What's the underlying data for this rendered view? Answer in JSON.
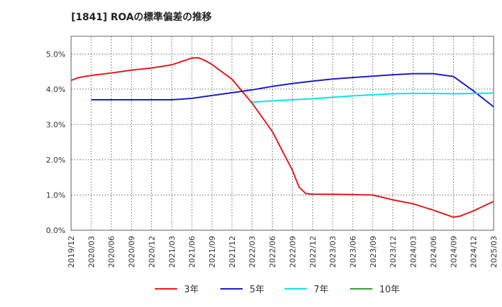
{
  "chart_data": {
    "type": "line",
    "title": "[1841]  ROAの標準偏差の推移",
    "xlabel": "",
    "ylabel": "",
    "ylim": [
      0,
      5.5
    ],
    "grid": true,
    "legend_position": "bottom",
    "x_tick_labels": [
      "2019/12",
      "2020/03",
      "2020/06",
      "2020/09",
      "2020/12",
      "2021/03",
      "2021/06",
      "2021/09",
      "2021/12",
      "2022/03",
      "2022/06",
      "2022/09",
      "2022/12",
      "2023/03",
      "2023/06",
      "2023/09",
      "2023/12",
      "2024/03",
      "2024/06",
      "2024/09",
      "2024/12",
      "2025/03"
    ],
    "y_ticks": [
      0,
      1,
      2,
      3,
      4,
      5
    ],
    "y_tick_labels": [
      "0.0%",
      "1.0%",
      "2.0%",
      "3.0%",
      "4.0%",
      "5.0%"
    ],
    "series": [
      {
        "name": "3年",
        "color": "#e31a1c",
        "points": [
          [
            "2019/12",
            4.25
          ],
          [
            "2020/01",
            4.32
          ],
          [
            "2020/02",
            4.36
          ],
          [
            "2020/03",
            4.39
          ],
          [
            "2020/06",
            4.46
          ],
          [
            "2020/09",
            4.54
          ],
          [
            "2020/12",
            4.6
          ],
          [
            "2021/03",
            4.69
          ],
          [
            "2021/06",
            4.88
          ],
          [
            "2021/07",
            4.89
          ],
          [
            "2021/08",
            4.81
          ],
          [
            "2021/09",
            4.7
          ],
          [
            "2021/12",
            4.28
          ],
          [
            "2022/03",
            3.6
          ],
          [
            "2022/06",
            2.8
          ],
          [
            "2022/09",
            1.7
          ],
          [
            "2022/10",
            1.22
          ],
          [
            "2022/11",
            1.04
          ],
          [
            "2022/12",
            1.02
          ],
          [
            "2023/03",
            1.02
          ],
          [
            "2023/06",
            1.01
          ],
          [
            "2023/09",
            1.0
          ],
          [
            "2023/12",
            0.86
          ],
          [
            "2024/03",
            0.75
          ],
          [
            "2024/06",
            0.57
          ],
          [
            "2024/09",
            0.37
          ],
          [
            "2024/10",
            0.4
          ],
          [
            "2024/12",
            0.55
          ],
          [
            "2025/03",
            0.82
          ]
        ]
      },
      {
        "name": "5年",
        "color": "#1a1acc",
        "points": [
          [
            "2020/03",
            3.7
          ],
          [
            "2020/06",
            3.7
          ],
          [
            "2020/09",
            3.7
          ],
          [
            "2020/12",
            3.7
          ],
          [
            "2021/03",
            3.7
          ],
          [
            "2021/06",
            3.74
          ],
          [
            "2021/09",
            3.82
          ],
          [
            "2021/12",
            3.9
          ],
          [
            "2022/03",
            3.98
          ],
          [
            "2022/06",
            4.08
          ],
          [
            "2022/09",
            4.16
          ],
          [
            "2022/12",
            4.23
          ],
          [
            "2023/03",
            4.29
          ],
          [
            "2023/06",
            4.33
          ],
          [
            "2023/09",
            4.37
          ],
          [
            "2023/12",
            4.41
          ],
          [
            "2024/03",
            4.44
          ],
          [
            "2024/06",
            4.44
          ],
          [
            "2024/09",
            4.36
          ],
          [
            "2024/12",
            3.95
          ],
          [
            "2025/03",
            3.5
          ]
        ]
      },
      {
        "name": "7年",
        "color": "#00e5ee",
        "points": [
          [
            "2022/03",
            3.63
          ],
          [
            "2022/06",
            3.67
          ],
          [
            "2022/09",
            3.7
          ],
          [
            "2022/12",
            3.73
          ],
          [
            "2023/03",
            3.77
          ],
          [
            "2023/06",
            3.81
          ],
          [
            "2023/09",
            3.84
          ],
          [
            "2023/12",
            3.87
          ],
          [
            "2024/03",
            3.88
          ],
          [
            "2024/06",
            3.88
          ],
          [
            "2024/09",
            3.87
          ],
          [
            "2024/12",
            3.88
          ],
          [
            "2025/03",
            3.89
          ]
        ]
      },
      {
        "name": "10年",
        "color": "#2ca02c",
        "points": []
      }
    ]
  }
}
